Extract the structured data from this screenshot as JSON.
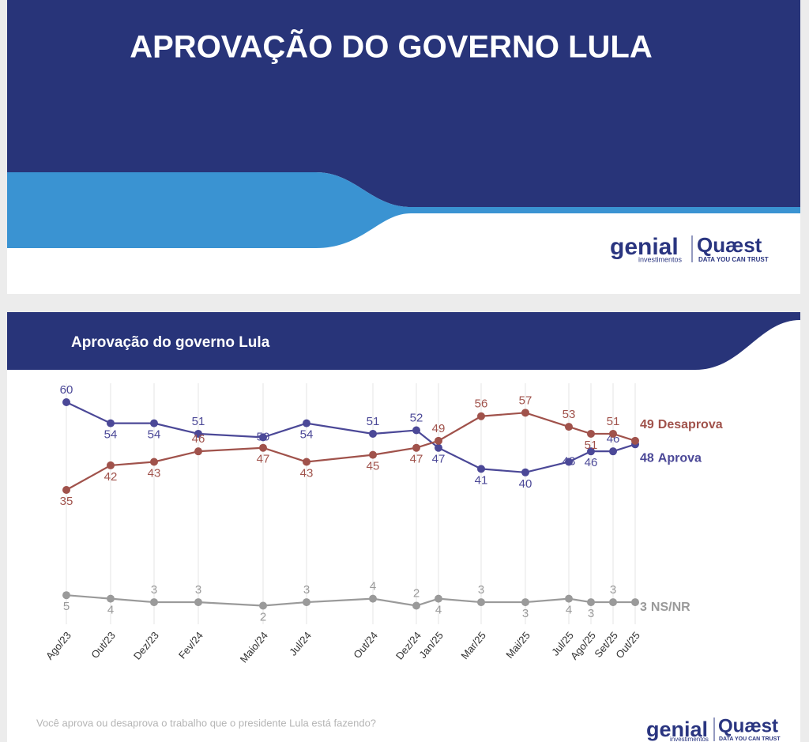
{
  "cover": {
    "title": "APROVAÇÃO DO GOVERNO LULA"
  },
  "logos": {
    "genial": "genial",
    "genial_sub": "investimentos",
    "quaest": "Quæst",
    "quaest_sub": "DATA YOU CAN TRUST"
  },
  "chart_data": {
    "type": "line",
    "title": "Aprovação do governo Lula",
    "categories": [
      "Ago/23",
      "Out/23",
      "Dez/23",
      "Fev/24",
      "Maio/24",
      "Jul/24",
      "Out/24",
      "Dez/24",
      "Jan/25",
      "Mar/25",
      "Mai/25",
      "Jul/25",
      "Ago/25",
      "Set/25",
      "Out/25"
    ],
    "series": [
      {
        "name": "Aprova",
        "color": "#4b4897",
        "values": [
          60,
          54,
          54,
          51,
          50,
          54,
          51,
          52,
          47,
          41,
          40,
          43,
          46,
          46,
          48
        ]
      },
      {
        "name": "Desaprova",
        "color": "#a0524b",
        "values": [
          35,
          42,
          43,
          46,
          47,
          43,
          45,
          47,
          49,
          56,
          57,
          53,
          51,
          51,
          49
        ]
      },
      {
        "name": "NS/NR",
        "color": "#9a9a9a",
        "values": [
          5,
          4,
          3,
          3,
          2,
          3,
          4,
          2,
          4,
          3,
          3,
          4,
          3,
          3,
          3
        ]
      }
    ],
    "grid": true,
    "note": "Você aprova ou desaprova o trabalho que o presidente Lula está fazendo?"
  }
}
